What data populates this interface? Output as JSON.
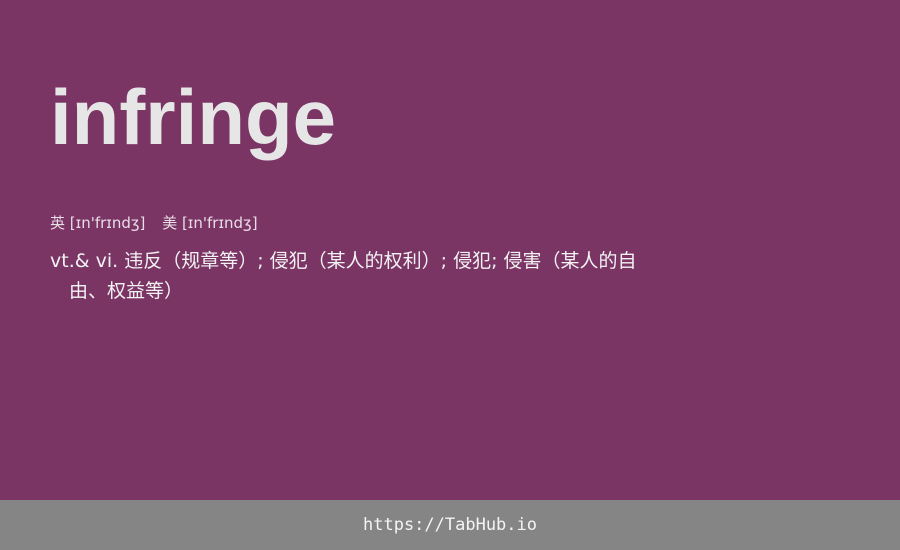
{
  "card": {
    "word": "infringe",
    "phonetics": [
      {
        "label": "英 [ɪn'frɪndʒ]"
      },
      {
        "label": "美 [ɪn'frɪndʒ]"
      }
    ],
    "definition_line1": "vt.& vi. 违反（规章等）; 侵犯（某人的权利）; 侵犯; 侵害（某人的自",
    "definition_line2": "由、权益等）"
  },
  "footer": {
    "link": "https://TabHub.io"
  },
  "colors": {
    "background": "#7b3565",
    "footer": "#858585",
    "word": "#e6e6e6"
  }
}
